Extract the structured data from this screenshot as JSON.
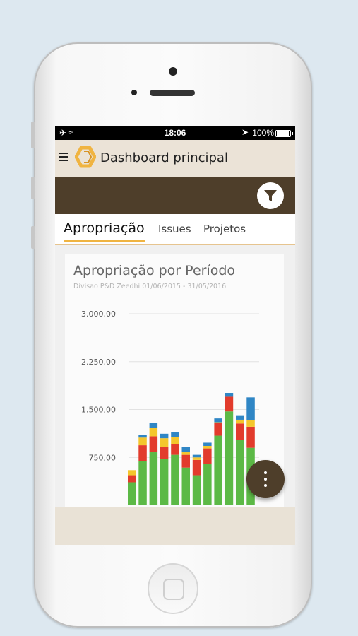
{
  "status_bar": {
    "time": "18:06",
    "battery": "100%"
  },
  "app_bar": {
    "title": "Dashboard principal"
  },
  "tabs": [
    {
      "label": "Apropriação",
      "active": true
    },
    {
      "label": "Issues",
      "active": false
    },
    {
      "label": "Projetos",
      "active": false
    }
  ],
  "colors": {
    "accent": "#f0b441",
    "toolbar": "#4e3e2a",
    "appbar": "#ebe3d7"
  },
  "chart_data": {
    "type": "bar",
    "stacked": true,
    "title": "Apropriação por Período",
    "subtitle": "Divisao P&D Zeedhi 01/06/2015 - 31/05/2016",
    "y_ticks": [
      "750,00",
      "1.500,00",
      "2.250,00",
      "3.000,00"
    ],
    "ylim": [
      0,
      3000
    ],
    "grid": true,
    "series": [
      {
        "color": "#5cb946",
        "values": [
          360,
          690,
          830,
          720,
          790,
          590,
          470,
          650,
          1090,
          1470,
          1020,
          900
        ]
      },
      {
        "color": "#e23b2c",
        "values": [
          110,
          250,
          250,
          190,
          170,
          200,
          240,
          240,
          200,
          230,
          260,
          330
        ]
      },
      {
        "color": "#f4c62c",
        "values": [
          80,
          120,
          130,
          140,
          110,
          40,
          40,
          40,
          10,
          0,
          60,
          100
        ]
      },
      {
        "color": "#2f86c5",
        "values": [
          0,
          40,
          80,
          70,
          70,
          80,
          40,
          50,
          60,
          60,
          70,
          360
        ]
      }
    ]
  }
}
